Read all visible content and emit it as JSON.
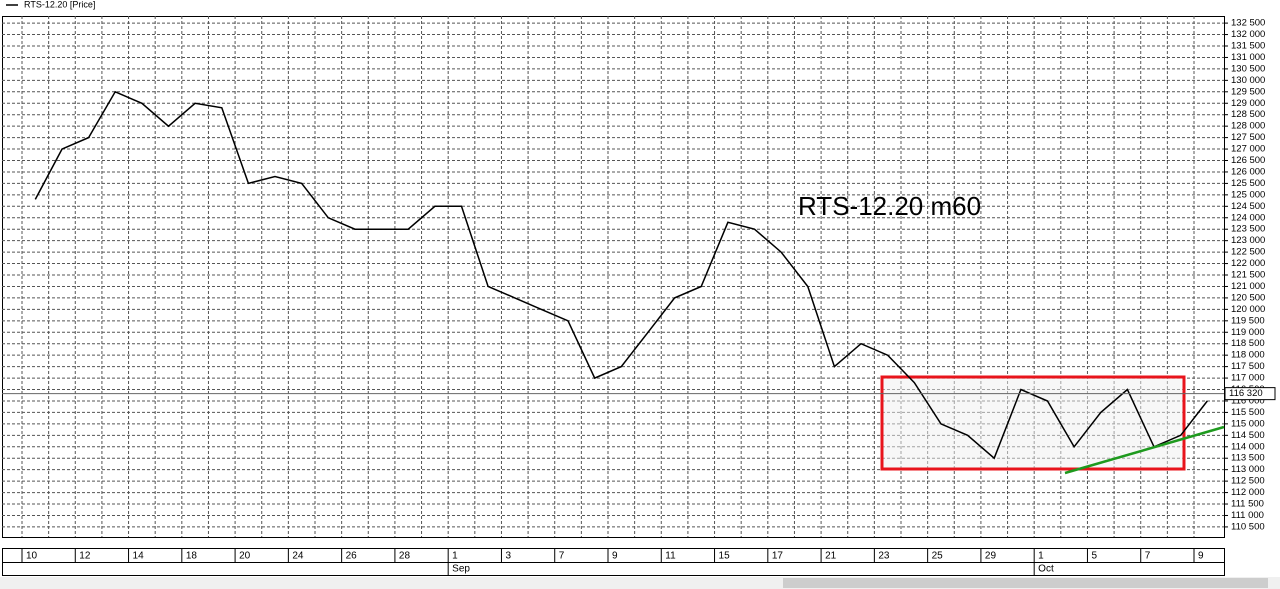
{
  "chart_data": {
    "type": "line",
    "series": [
      {
        "name": "RTS-12.20 [Price]",
        "color": "#000000",
        "values": [
          124800,
          127000,
          127500,
          129500,
          129000,
          128000,
          129000,
          128800,
          125500,
          125800,
          125500,
          124000,
          123500,
          123500,
          123500,
          124500,
          124500,
          121000,
          120500,
          120000,
          119500,
          117000,
          117500,
          119000,
          120500,
          121000,
          123800,
          123500,
          122500,
          121000,
          117500,
          118500,
          118000,
          116800,
          115000,
          114500,
          113500,
          116500,
          116000,
          114000,
          115500,
          116500,
          114000,
          114500,
          116000
        ]
      }
    ],
    "categories": [
      "10",
      null,
      "12",
      null,
      "14",
      null,
      "18",
      null,
      "20",
      null,
      "24",
      null,
      "26",
      null,
      "28",
      null,
      "1",
      null,
      "3",
      null,
      "7",
      null,
      "9",
      null,
      "11",
      null,
      "15",
      null,
      "17",
      null,
      "21",
      null,
      "23",
      null,
      "25",
      null,
      "29",
      null,
      "1",
      null,
      "5",
      null,
      "7",
      null,
      "9"
    ],
    "month_labels": [
      null,
      null,
      null,
      null,
      null,
      null,
      null,
      null,
      null,
      null,
      null,
      null,
      null,
      null,
      null,
      null,
      "Sep",
      null,
      null,
      null,
      null,
      null,
      null,
      null,
      null,
      null,
      null,
      null,
      null,
      null,
      null,
      null,
      null,
      null,
      null,
      null,
      null,
      null,
      "Oct",
      null,
      null,
      null,
      null,
      null,
      null
    ],
    "annotation": "RTS-12.20 m60",
    "last_price": {
      "value": 116320,
      "label": "116 320"
    },
    "ylim": [
      110060,
      132810
    ],
    "yticks": [
      {
        "value": 110500,
        "label": "110 500"
      },
      {
        "value": 111000,
        "label": "111 000"
      },
      {
        "value": 111500,
        "label": "111 500"
      },
      {
        "value": 112000,
        "label": "112 000"
      },
      {
        "value": 112500,
        "label": "112 500"
      },
      {
        "value": 113000,
        "label": "113 000"
      },
      {
        "value": 113500,
        "label": "113 500"
      },
      {
        "value": 114000,
        "label": "114 000"
      },
      {
        "value": 114500,
        "label": "114 500"
      },
      {
        "value": 115000,
        "label": "115 000"
      },
      {
        "value": 115500,
        "label": "115 500"
      },
      {
        "value": 116000,
        "label": "116 000"
      },
      {
        "value": 116500,
        "label": "116 500"
      },
      {
        "value": 117000,
        "label": "117 000"
      },
      {
        "value": 117500,
        "label": "117 500"
      },
      {
        "value": 118000,
        "label": "118 000"
      },
      {
        "value": 118500,
        "label": "118 500"
      },
      {
        "value": 119000,
        "label": "119 000"
      },
      {
        "value": 119500,
        "label": "119 500"
      },
      {
        "value": 120000,
        "label": "120 000"
      },
      {
        "value": 120500,
        "label": "120 500"
      },
      {
        "value": 121000,
        "label": "121 000"
      },
      {
        "value": 121500,
        "label": "121 500"
      },
      {
        "value": 122000,
        "label": "122 000"
      },
      {
        "value": 122500,
        "label": "122 500"
      },
      {
        "value": 123000,
        "label": "123 000"
      },
      {
        "value": 123500,
        "label": "123 500"
      },
      {
        "value": 124000,
        "label": "124 000"
      },
      {
        "value": 124500,
        "label": "124 500"
      },
      {
        "value": 125000,
        "label": "125 000"
      },
      {
        "value": 125500,
        "label": "125 500"
      },
      {
        "value": 126000,
        "label": "126 000"
      },
      {
        "value": 126500,
        "label": "126 500"
      },
      {
        "value": 127000,
        "label": "127 000"
      },
      {
        "value": 127500,
        "label": "127 500"
      },
      {
        "value": 128000,
        "label": "128 000"
      },
      {
        "value": 128500,
        "label": "128 500"
      },
      {
        "value": 129000,
        "label": "129 000"
      },
      {
        "value": 129500,
        "label": "129 500"
      },
      {
        "value": 130000,
        "label": "130 000"
      },
      {
        "value": 130500,
        "label": "130 500"
      },
      {
        "value": 131000,
        "label": "131 000"
      },
      {
        "value": 131500,
        "label": "131 500"
      },
      {
        "value": 132000,
        "label": "132 000"
      },
      {
        "value": 132500,
        "label": "132 500"
      }
    ],
    "grid": true
  }
}
